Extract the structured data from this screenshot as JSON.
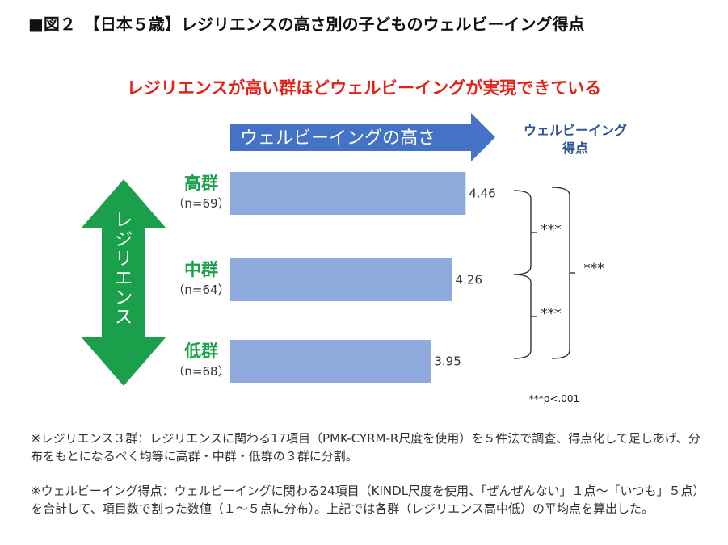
{
  "title": "■図２　【日本５歳】レジリエンスの高さ別の子どものウェルビーイング得点",
  "headline": "レジリエンスが高い群ほどウェルビーイングが実現できている",
  "arrow_label": "ウェルビーイングの高さ",
  "score_header": [
    "ウェルビーイング",
    "得点"
  ],
  "resilience_label": "レジリエンス",
  "colors": {
    "bar": "#8faadc",
    "blue_arrow": "#4472c4",
    "green_arrow": "#1aa04a",
    "headline": "#e2231a",
    "group_label": "#1aa04a",
    "score_header": "#2f5597"
  },
  "chart_data": {
    "type": "bar",
    "orientation": "horizontal",
    "categories": [
      "高群",
      "中群",
      "低群"
    ],
    "sample_sizes": [
      "（n=69）",
      "（n=64）",
      "（n=68）"
    ],
    "values": [
      4.46,
      4.26,
      3.95
    ],
    "value_labels": [
      "4.46",
      "4.26",
      "3.95"
    ],
    "xlim": [
      1,
      5
    ],
    "significance": [
      {
        "between": [
          "高群",
          "中群"
        ],
        "label": "***"
      },
      {
        "between": [
          "中群",
          "低群"
        ],
        "label": "***"
      },
      {
        "between": [
          "高群",
          "低群"
        ],
        "label": "***"
      }
    ],
    "footnote": "***p<.001"
  },
  "notes": [
    "※レジリエンス３群：レジリエンスに関わる17項目（PMK-CYRM-R尺度を使用）を５件法で調査、得点化して足しあげ、分布をもとになるべく均等に高群・中群・低群の３群に分割。",
    "※ウェルビーイング得点：ウェルビーイングに関わる24項目（KINDL尺度を使用、「ぜんぜんない」１点～「いつも」５点）を合計して、項目数で割った数値（１～５点に分布）。上記では各群（レジリエンス高中低）の平均点を算出した。"
  ]
}
